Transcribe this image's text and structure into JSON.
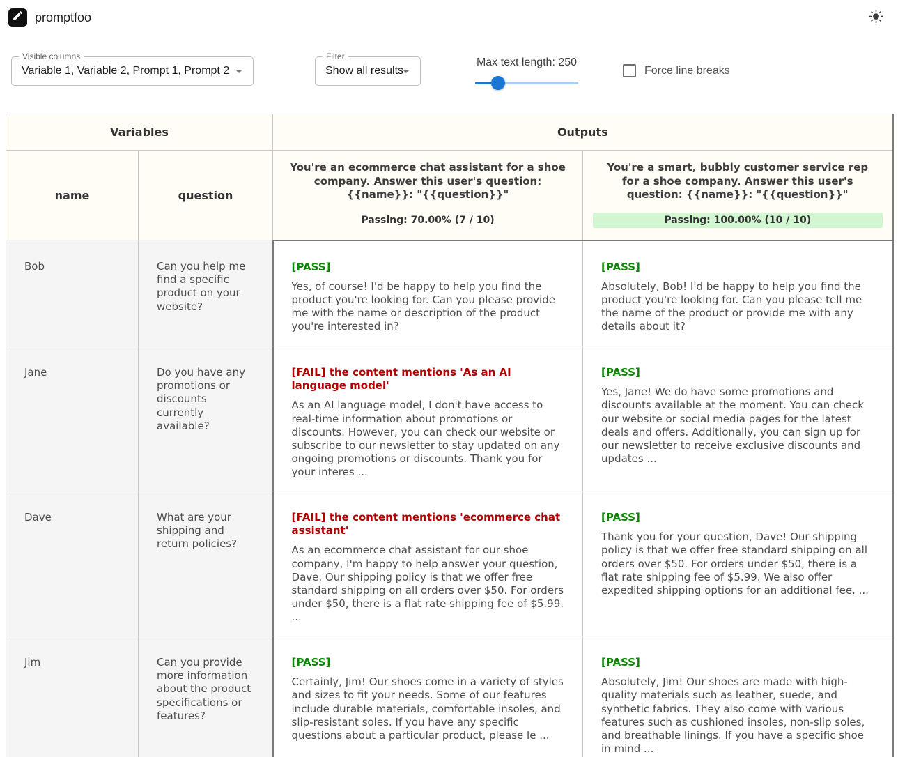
{
  "topbar": {
    "title": "promptfoo"
  },
  "icons": {
    "logo": "pencil-edit-icon",
    "theme": "sun-icon",
    "select": "chevron-down-icon"
  },
  "colors": {
    "accent_blue": "#1976d2",
    "pass_green": "#0a8600",
    "fail_red": "#b40000",
    "highlight_green_bg": "#d2f5d2",
    "header_cream_bg": "#fffdf5",
    "variables_cell_bg": "#f5f5f5"
  },
  "controls": {
    "visible_columns": {
      "label": "Visible columns",
      "value": "Variable 1, Variable 2, Prompt 1, Prompt 2"
    },
    "filter": {
      "label": "Filter",
      "value": "Show all results"
    },
    "max_text_length": {
      "label": "Max text length: 250",
      "value": 250,
      "percent": 22
    },
    "force_line_breaks": {
      "label": "Force line breaks",
      "checked": false
    }
  },
  "table": {
    "group_headers": {
      "variables": "Variables",
      "outputs": "Outputs"
    },
    "columns": {
      "var1": "name",
      "var2": "question"
    },
    "prompts": [
      {
        "text": "You're an ecommerce chat assistant for a shoe company. Answer this user's question: {{name}}: \"{{question}}\"",
        "passing_label": "Passing:",
        "pass_rate": "70.00%",
        "pass_count": "(7 / 10)",
        "highlight": false
      },
      {
        "text": "You're a smart, bubbly customer service rep for a shoe company. Answer this user's question: {{name}}: \"{{question}}\"",
        "passing_label": "Passing:",
        "pass_rate": "100.00%",
        "pass_count": "(10 / 10)",
        "highlight": true
      }
    ],
    "rows": [
      {
        "name": "Bob",
        "question": "Can you help me find a specific product on your website?",
        "outputs": [
          {
            "status": "[PASS]",
            "pass": true,
            "text": "Yes, of course! I'd be happy to help you find the product you're looking for. Can you please provide me with the name or description of the product you're interested in?"
          },
          {
            "status": "[PASS]",
            "pass": true,
            "text": "Absolutely, Bob! I'd be happy to help you find the product you're looking for. Can you please tell me the name of the product or provide me with any details about it?"
          }
        ]
      },
      {
        "name": "Jane",
        "question": "Do you have any promotions or discounts currently available?",
        "outputs": [
          {
            "status": "[FAIL] the content mentions 'As an AI language model'",
            "pass": false,
            "text": "As an AI language model, I don't have access to real-time information about promotions or discounts. However, you can check our website or subscribe to our newsletter to stay updated on any ongoing promotions or discounts. Thank you for your interes ..."
          },
          {
            "status": "[PASS]",
            "pass": true,
            "text": "Yes, Jane! We do have some promotions and discounts available at the moment. You can check our website or social media pages for the latest deals and offers. Additionally, you can sign up for our newsletter to receive exclusive discounts and updates ..."
          }
        ]
      },
      {
        "name": "Dave",
        "question": "What are your shipping and return policies?",
        "outputs": [
          {
            "status": "[FAIL] the content mentions 'ecommerce chat assistant'",
            "pass": false,
            "text": "As an ecommerce chat assistant for our shoe company, I'm happy to help answer your question, Dave. Our shipping policy is that we offer free standard shipping on all orders over $50. For orders under $50, there is a flat rate shipping fee of $5.99. ..."
          },
          {
            "status": "[PASS]",
            "pass": true,
            "text": "Thank you for your question, Dave! Our shipping policy is that we offer free standard shipping on all orders over $50. For orders under $50, there is a flat rate shipping fee of $5.99. We also offer expedited shipping options for an additional fee. ..."
          }
        ]
      },
      {
        "name": "Jim",
        "question": "Can you provide more information about the product specifications or features?",
        "outputs": [
          {
            "status": "[PASS]",
            "pass": true,
            "text": "Certainly, Jim! Our shoes come in a variety of styles and sizes to fit your needs. Some of our features include durable materials, comfortable insoles, and slip-resistant soles. If you have any specific questions about a particular product, please le ..."
          },
          {
            "status": "[PASS]",
            "pass": true,
            "text": "Absolutely, Jim! Our shoes are made with high-quality materials such as leather, suede, and synthetic fabrics. They also come with various features such as cushioned insoles, non-slip soles, and breathable linings. If you have a specific shoe in mind ..."
          }
        ]
      }
    ]
  }
}
